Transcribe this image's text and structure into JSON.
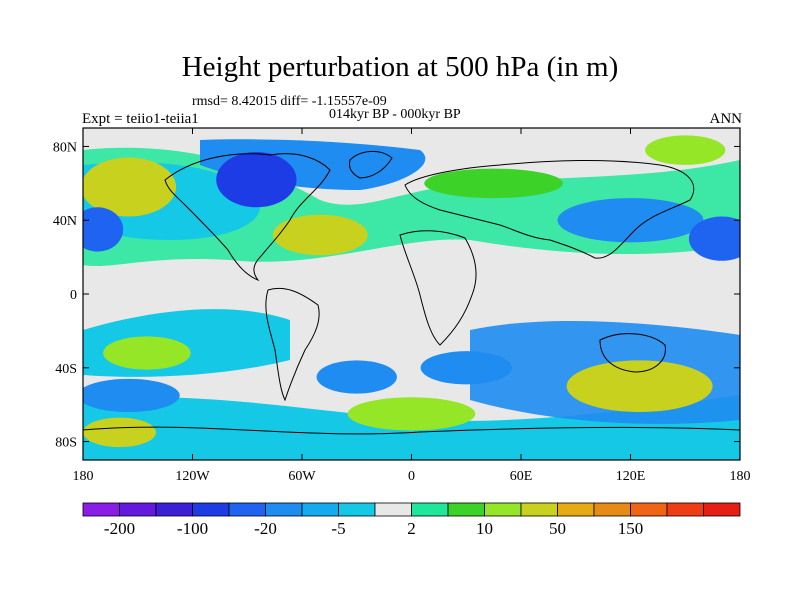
{
  "title": "Height perturbation at 500 hPa (in m)",
  "stats_line": "rmsd= 8.42015 diff= -1.15557e-09",
  "period": "014kyr BP - 000kyr BP",
  "experiment": "Expt = teiio1-teiia1",
  "season": "ANN",
  "lat_ticks": [
    {
      "label": "80N",
      "lat": 80
    },
    {
      "label": "40N",
      "lat": 40
    },
    {
      "label": "0",
      "lat": 0
    },
    {
      "label": "40S",
      "lat": -40
    },
    {
      "label": "80S",
      "lat": -80
    }
  ],
  "lon_ticks": [
    {
      "label": "180",
      "lon": -180
    },
    {
      "label": "120W",
      "lon": -120
    },
    {
      "label": "60W",
      "lon": -60
    },
    {
      "label": "0",
      "lon": 0
    },
    {
      "label": "60E",
      "lon": 60
    },
    {
      "label": "120E",
      "lon": 120
    },
    {
      "label": "180",
      "lon": 180
    }
  ],
  "colorbar": {
    "colors": [
      "#8a1ee6",
      "#6419e0",
      "#3c20d8",
      "#1e3ce6",
      "#1e64f0",
      "#1e8cf0",
      "#14aaf0",
      "#14c8e6",
      "#e8e8e8",
      "#1ee69a",
      "#3cd228",
      "#96e628",
      "#c8d21e",
      "#e6aa14",
      "#e68c14",
      "#f06414",
      "#f03c14",
      "#e61e14"
    ],
    "labels": [
      "-200",
      "-100",
      "-20",
      "-5",
      "2",
      "10",
      "50",
      "150"
    ]
  },
  "field_blobs": [
    {
      "lon": -155,
      "lat": 58,
      "rx": 26,
      "ry": 16,
      "fill": "#c8d21e"
    },
    {
      "lon": -85,
      "lat": 62,
      "rx": 22,
      "ry": 15,
      "fill": "#1e3ce6"
    },
    {
      "lon": -50,
      "lat": 32,
      "rx": 26,
      "ry": 11,
      "fill": "#c8d21e"
    },
    {
      "lon": 45,
      "lat": 60,
      "rx": 38,
      "ry": 8,
      "fill": "#3cd228"
    },
    {
      "lon": 120,
      "lat": 40,
      "rx": 40,
      "ry": 12,
      "fill": "#1e8cf0"
    },
    {
      "lon": 170,
      "lat": 30,
      "rx": 18,
      "ry": 12,
      "fill": "#1e64f0"
    },
    {
      "lon": -172,
      "lat": 35,
      "rx": 14,
      "ry": 12,
      "fill": "#1e64f0"
    },
    {
      "lon": 150,
      "lat": 78,
      "rx": 22,
      "ry": 8,
      "fill": "#96e628"
    },
    {
      "lon": -145,
      "lat": -32,
      "rx": 24,
      "ry": 9,
      "fill": "#96e628"
    },
    {
      "lon": -155,
      "lat": -55,
      "rx": 28,
      "ry": 9,
      "fill": "#1e8cf0"
    },
    {
      "lon": -160,
      "lat": -75,
      "rx": 20,
      "ry": 8,
      "fill": "#c8d21e"
    },
    {
      "lon": -30,
      "lat": -45,
      "rx": 22,
      "ry": 9,
      "fill": "#1e8cf0"
    },
    {
      "lon": 30,
      "lat": -40,
      "rx": 25,
      "ry": 9,
      "fill": "#1e8cf0"
    },
    {
      "lon": 125,
      "lat": -50,
      "rx": 40,
      "ry": 14,
      "fill": "#c8d21e"
    },
    {
      "lon": 0,
      "lat": -65,
      "rx": 35,
      "ry": 9,
      "fill": "#96e628"
    }
  ]
}
